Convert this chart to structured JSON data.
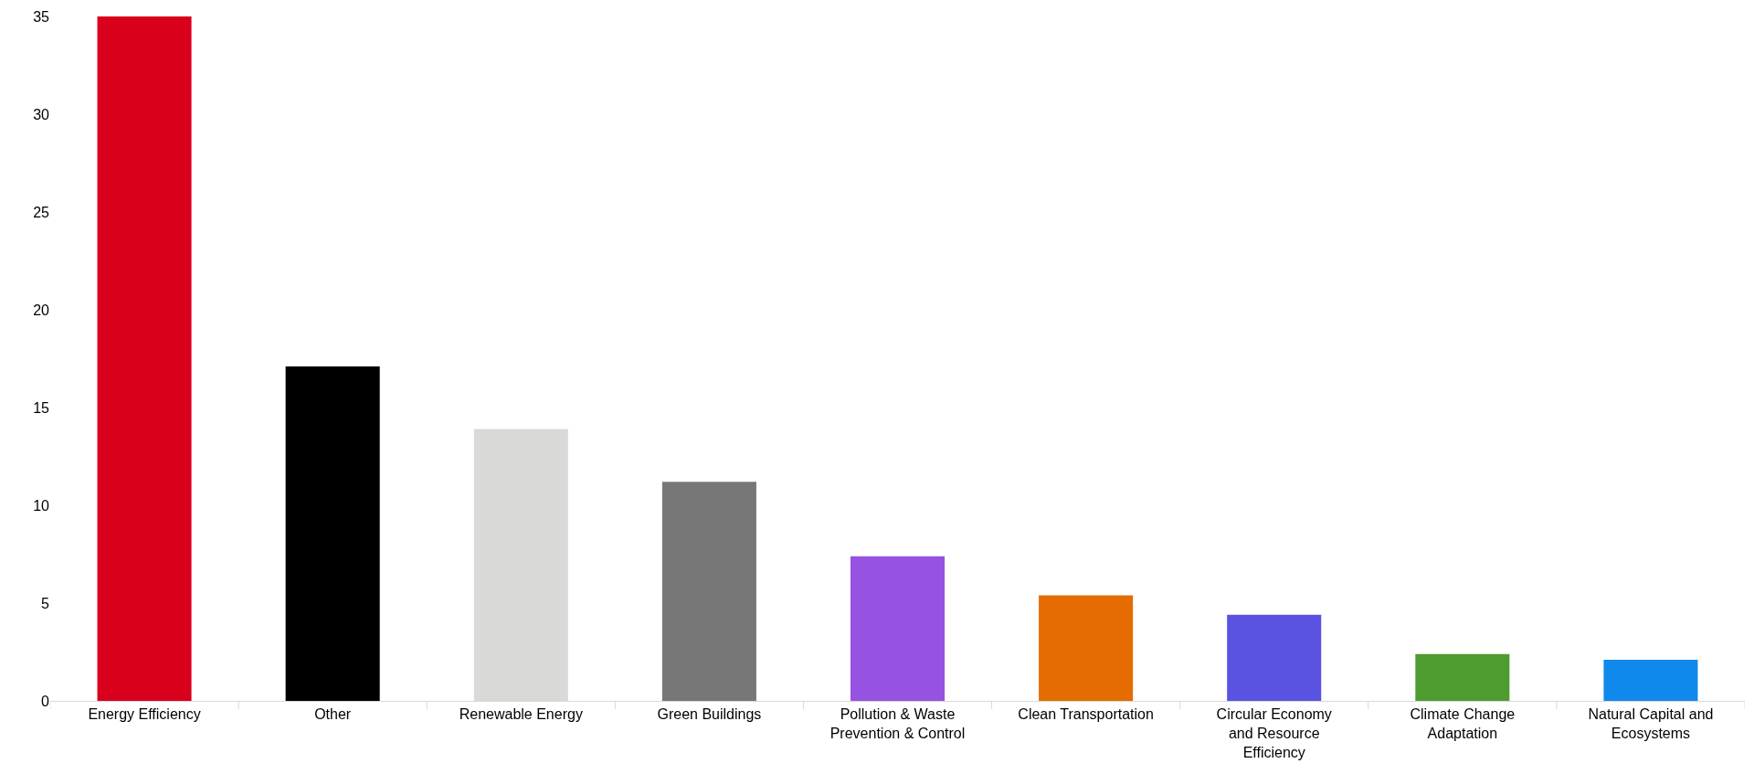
{
  "chart_data": {
    "type": "bar",
    "categories": [
      "Energy Efficiency",
      "Other",
      "Renewable Energy",
      "Green Buildings",
      "Pollution & Waste Prevention & Control",
      "Clean Transportation",
      "Circular Economy and Resource Efficiency",
      "Climate Change Adaptation",
      "Natural Capital and Ecosystems"
    ],
    "values": [
      35.0,
      17.1,
      13.9,
      11.2,
      7.4,
      5.4,
      4.4,
      2.4,
      2.1
    ],
    "colors": [
      "#d9001b",
      "#000000",
      "#d9d9d8",
      "#777777",
      "#9652e0",
      "#e56c03",
      "#5a52e0",
      "#4e9c2f",
      "#1089ec"
    ],
    "ylim": [
      0,
      35
    ],
    "yticks": [
      0,
      5,
      10,
      15,
      20,
      25,
      30,
      35
    ],
    "grid": false
  }
}
